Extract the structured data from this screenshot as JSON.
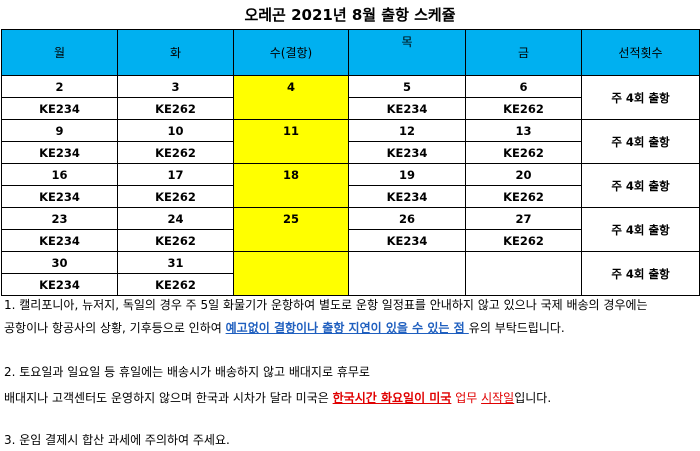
{
  "title": "오레곤 2021년 8월 출항 스케쥴",
  "headers": {
    "mon": "월",
    "tue": "화",
    "wed": "수(결항)",
    "thu": "목",
    "fri": "금",
    "count": "선적횟수"
  },
  "weeks": [
    {
      "mon": "2",
      "tue": "3",
      "wed": "4",
      "thu": "5",
      "fri": "6",
      "mon_flight": "KE234",
      "tue_flight": "KE262",
      "thu_flight": "KE234",
      "fri_flight": "KE262",
      "count": "주 4회 출항"
    },
    {
      "mon": "9",
      "tue": "10",
      "wed": "11",
      "thu": "12",
      "fri": "13",
      "mon_flight": "KE234",
      "tue_flight": "KE262",
      "thu_flight": "KE234",
      "fri_flight": "KE262",
      "count": "주 4회 출항"
    },
    {
      "mon": "16",
      "tue": "17",
      "wed": "18",
      "thu": "19",
      "fri": "20",
      "mon_flight": "KE234",
      "tue_flight": "KE262",
      "thu_flight": "KE234",
      "fri_flight": "KE262",
      "count": "주 4회 출항"
    },
    {
      "mon": "23",
      "tue": "24",
      "wed": "25",
      "thu": "26",
      "fri": "27",
      "mon_flight": "KE234",
      "tue_flight": "KE262",
      "thu_flight": "KE234",
      "fri_flight": "KE262",
      "count": "주 4회 출항"
    },
    {
      "mon": "30",
      "tue": "31",
      "mon_flight": "KE234",
      "tue_flight": "KE262",
      "count": "주 4회 출항"
    }
  ],
  "notes": {
    "n1_line1": "1. 캘리포니아, 뉴저지, 독일의 경우 주 5일 화물기가 운항하여 별도로 운항 일정표를 안내하지 않고 있으나 국제 배송의 경우에는",
    "n1_line2_pre": "공항이나 항공사의 상황, 기후등으로 인하여 ",
    "n1_line2_emph": "예고없이 결항이나 출항 지연이 있을 수 있는 점 ",
    "n1_line2_post": "유의 부탁드립니다.",
    "n2_line1": "2. 토요일과 일요일 등 휴일에는 배송시가 배송하지 않고 배대지로 휴무로",
    "n2_line2_pre": "배대지나 고객센터도 운영하지 않으며 한국과 시차가 달라 미국은 ",
    "n2_line2_emph": "한국시간 화요일이 미국",
    "n2_line2_mid": " 업무 ",
    "n2_line2_emph2": "시작일",
    "n2_line2_post": "입니다.",
    "n3": "3. 운임 결제시 합산 과세에 주의하여 주세요."
  },
  "colors": {
    "header_bg": "#00b0f0",
    "highlight": "#ffff00",
    "note_blue": "#1f5fbf",
    "note_red": "#e00000"
  }
}
